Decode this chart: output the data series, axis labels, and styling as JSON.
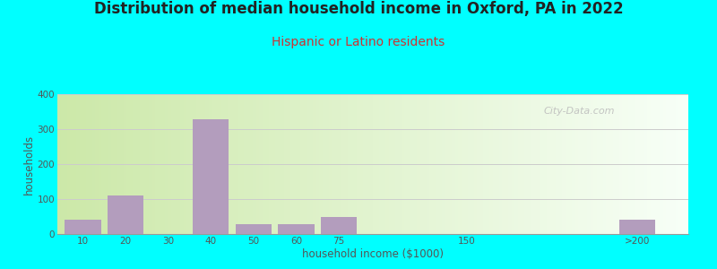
{
  "title": "Distribution of median household income in Oxford, PA in 2022",
  "subtitle": "Hispanic or Latino residents",
  "xlabel": "household income ($1000)",
  "ylabel": "households",
  "bar_values": [
    40,
    110,
    0,
    328,
    28,
    28,
    50,
    0,
    40
  ],
  "bar_positions": [
    0,
    1,
    2,
    3,
    4,
    5,
    6,
    9,
    13
  ],
  "bar_width": 0.85,
  "bar_color": "#b39dbd",
  "ylim": [
    0,
    400
  ],
  "yticks": [
    0,
    100,
    200,
    300,
    400
  ],
  "xtick_labels": [
    "10",
    "20",
    "30",
    "40",
    "50",
    "60",
    "75",
    "150",
    ">200"
  ],
  "xtick_positions": [
    0,
    1,
    2,
    3,
    4,
    5,
    6,
    9,
    13
  ],
  "xlim_min": -0.6,
  "xlim_max": 14.2,
  "bg_color_left": "#cce8a8",
  "bg_color_right": "#f0faf0",
  "outer_bg": "#00ffff",
  "title_color": "#222222",
  "subtitle_color": "#cc3333",
  "axis_label_color": "#555555",
  "watermark_text": "City-Data.com",
  "watermark_color": "#bbbbbb",
  "title_fontsize": 12,
  "subtitle_fontsize": 10,
  "label_fontsize": 8.5,
  "tick_fontsize": 7.5
}
